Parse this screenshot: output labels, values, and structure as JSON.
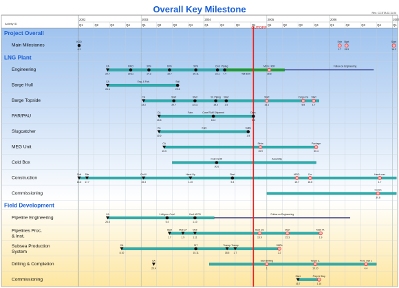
{
  "title": "Overall Key Milestone",
  "revision": "Rev.: CCSTA 02.11.04",
  "activity_header": "Activity ID",
  "cutoff_label": "CUTOFF",
  "chart_data": {
    "type": "gantt",
    "time_axis": {
      "start": "2002-01",
      "end": "2007-02",
      "years": [
        "2002",
        "2003",
        "2004",
        "2005",
        "2006",
        "2007"
      ],
      "quarters": [
        "Q1",
        "Q2",
        "Q3",
        "Q4"
      ]
    },
    "cutoff": "2004-10-15",
    "legend": "none",
    "grid": true,
    "rows": [
      {
        "label": "Project Overall",
        "kind": "section",
        "band": "blue"
      },
      {
        "label": "Main Milestones",
        "kind": "task",
        "band": "blue",
        "bars": [],
        "milestones": [
          {
            "t": "2002-01-05",
            "shape": "dot",
            "top": "KOD",
            "bot": "6.3"
          },
          {
            "t": "2006-03-01",
            "shape": "ring",
            "top": "Entr",
            "bot": "1.7"
          },
          {
            "t": "2006-04-10",
            "shape": "ring",
            "top": "Start",
            "bot": "15.9"
          },
          {
            "t": "2007-01-10",
            "shape": "ring",
            "top": "Start",
            "bot": "16.2"
          }
        ]
      },
      {
        "label": "LNG Plant",
        "kind": "section",
        "band": "blue"
      },
      {
        "label": "Engineering",
        "kind": "task",
        "band": "blue",
        "bars": [
          {
            "s": "2002-06-20",
            "e": "2004-10-10",
            "style": "teal"
          },
          {
            "s": "2004-05-05",
            "e": "2005-04-15",
            "style": "green"
          },
          {
            "s": "2005-04-15",
            "e": "2006-09-15",
            "style": "navy"
          }
        ],
        "milestones": [
          {
            "t": "2002-06-20",
            "shape": "tri",
            "top": "CA",
            "bot": "20.7"
          },
          {
            "t": "2002-11-01",
            "shape": "dot",
            "top": "FIRO",
            "bot": "29.11"
          },
          {
            "t": "2003-02-15",
            "shape": "dot",
            "top": "30%",
            "bot": "14.2"
          },
          {
            "t": "2003-06-15",
            "shape": "dot",
            "top": "60%",
            "bot": "15.7"
          },
          {
            "t": "2003-11-15",
            "shape": "dot",
            "top": "90%",
            "bot": "30.11"
          },
          {
            "t": "2004-03-20",
            "shape": "dot",
            "top": "Civil",
            "bot": "22.1"
          },
          {
            "t": "2004-05-01",
            "shape": "dot",
            "top": "Piping",
            "bot": "7.4"
          },
          {
            "t": "2004-09-01",
            "shape": "none",
            "top": "",
            "bot": "Tall Built"
          },
          {
            "t": "2005-01-15",
            "shape": "ring",
            "top": "MEG / IOR",
            "bot": "15.6"
          },
          {
            "t": "2006-04-01",
            "shape": "none",
            "top": "Follow on Engineering",
            "bot": ""
          }
        ]
      },
      {
        "label": "Barge Hull",
        "kind": "task",
        "band": "blue",
        "bars": [
          {
            "s": "2002-06-20",
            "e": "2003-08-01",
            "style": "teal"
          }
        ],
        "milestones": [
          {
            "t": "2002-06-20",
            "shape": "tri",
            "top": "CA",
            "bot": "26.6"
          },
          {
            "t": "2003-01-15",
            "shape": "none",
            "top": "Eng. & Fab.",
            "bot": ""
          },
          {
            "t": "2003-08-01",
            "shape": "dot",
            "top": "Sail",
            "bot": "29.8"
          }
        ]
      },
      {
        "label": "Barge Topside",
        "kind": "task",
        "band": "blue",
        "bars": [
          {
            "s": "2003-01-15",
            "e": "2005-11-01",
            "style": "teal"
          }
        ],
        "milestones": [
          {
            "t": "2003-01-15",
            "shape": "tri",
            "top": "CA",
            "bot": "13.2"
          },
          {
            "t": "2003-07-10",
            "shape": "dot",
            "top": "Start",
            "bot": "20.7"
          },
          {
            "t": "2003-11-10",
            "shape": "dot",
            "top": "Start",
            "bot": "12.11"
          },
          {
            "t": "2004-03-10",
            "shape": "dot",
            "top": "St. Piping",
            "bot": "18.3"
          },
          {
            "t": "2004-05-10",
            "shape": "dot",
            "top": "Start",
            "bot": "1.5"
          },
          {
            "t": "2005-01-01",
            "shape": "ring",
            "top": "Start",
            "bot": "15.1"
          },
          {
            "t": "2005-08-01",
            "shape": "ring",
            "top": "Cargo Ins",
            "bot": "8.8"
          },
          {
            "t": "2005-10-01",
            "shape": "ring",
            "top": "Start",
            "bot": "1.7"
          }
        ]
      },
      {
        "label": "PAR/PAU",
        "kind": "task",
        "band": "blue",
        "bars": [
          {
            "s": "2003-04-15",
            "e": "2004-10-15",
            "style": "teal"
          }
        ],
        "milestones": [
          {
            "t": "2003-04-15",
            "shape": "tri",
            "top": "CA",
            "bot": "15.5"
          },
          {
            "t": "2003-10-15",
            "shape": "none",
            "top": "Fabr.",
            "bot": ""
          },
          {
            "t": "2004-02-25",
            "shape": "dot",
            "top": "Cove RAM Shipment",
            "bot": "18.2"
          },
          {
            "t": "2004-10-15",
            "shape": "dot",
            "top": "Dem.",
            "bot": "5.8"
          }
        ]
      },
      {
        "label": "Slugcatcher",
        "kind": "task",
        "band": "blue",
        "bars": [
          {
            "s": "2003-04-15",
            "e": "2004-09-15",
            "style": "teal"
          }
        ],
        "milestones": [
          {
            "t": "2003-04-15",
            "shape": "tri",
            "top": "CA",
            "bot": "15.5"
          },
          {
            "t": "2004-01-05",
            "shape": "none",
            "top": "Fabr.",
            "bot": ""
          },
          {
            "t": "2004-09-15",
            "shape": "dot",
            "top": "Sailto",
            "bot": "1.8"
          }
        ]
      },
      {
        "label": "MEG Unit",
        "kind": "task",
        "band": "blue",
        "bars": [
          {
            "s": "2003-05-15",
            "e": "2005-10-15",
            "style": "teal"
          }
        ],
        "milestones": [
          {
            "t": "2003-05-15",
            "shape": "tri",
            "top": "CA",
            "bot": "15.5"
          },
          {
            "t": "2004-11-25",
            "shape": "ring",
            "top": "Sinks",
            "bot": "15.9"
          },
          {
            "t": "2005-10-15",
            "shape": "ring",
            "top": "Package",
            "bot": "30.4"
          }
        ]
      },
      {
        "label": "Cold Box",
        "kind": "task",
        "band": "blue",
        "bars": [
          {
            "s": "2003-07-01",
            "e": "2005-10-15",
            "style": "teal"
          }
        ],
        "milestones": [
          {
            "t": "2004-03-15",
            "shape": "dot",
            "top": "Cold Certif.",
            "bot": "30.6"
          },
          {
            "t": "2005-03-01",
            "shape": "none",
            "top": "Assembly",
            "bot": ""
          }
        ]
      },
      {
        "label": "Construction",
        "kind": "task",
        "band": "blue",
        "bars": [
          {
            "s": "2002-01-05",
            "e": "2004-11-15",
            "style": "teal"
          },
          {
            "s": "2004-11-15",
            "e": "2007-01-25",
            "style": "teal"
          }
        ],
        "milestones": [
          {
            "t": "2002-01-05",
            "shape": "tri",
            "top": "Civil",
            "bot": "14.6"
          },
          {
            "t": "2002-02-20",
            "shape": "tri",
            "top": "Site",
            "bot": "17.7"
          },
          {
            "t": "2003-01-15",
            "shape": "tri",
            "top": "Civil II",
            "bot": "15.3"
          },
          {
            "t": "2003-10-15",
            "shape": "tri",
            "top": "Hand-Up",
            "bot": "1.10"
          },
          {
            "t": "2004-06-15",
            "shape": "dot",
            "top": "Start",
            "bot": "5.4"
          },
          {
            "t": "2005-06-25",
            "shape": "ring",
            "top": "MECL",
            "bot": "15.7"
          },
          {
            "t": "2005-09-10",
            "shape": "ring",
            "top": "Cor.",
            "bot": "18.8"
          },
          {
            "t": "2006-10-20",
            "shape": "ring",
            "top": "Hand-over",
            "bot": "1.7"
          }
        ]
      },
      {
        "label": "Commissioning",
        "kind": "task",
        "band": "blue",
        "bars": [
          {
            "s": "2005-01-01",
            "e": "2007-01-25",
            "style": "teal"
          }
        ],
        "milestones": [
          {
            "t": "2006-10-10",
            "shape": "ring",
            "top": "Comm",
            "bot": "30.8"
          }
        ]
      },
      {
        "label": "Field Development",
        "kind": "section",
        "band": "yellow"
      },
      {
        "label": "Pipeline Engineering",
        "kind": "task",
        "band": "yellow",
        "bars": [
          {
            "s": "2002-06-20",
            "e": "2004-03-01",
            "style": "teal"
          },
          {
            "s": "2004-03-01",
            "e": "2006-05-01",
            "style": "navy"
          }
        ],
        "milestones": [
          {
            "t": "2002-06-20",
            "shape": "tri",
            "top": "CA",
            "bot": "26.6"
          },
          {
            "t": "2003-06-01",
            "shape": "dot",
            "top": "1.Alignm. Conf.",
            "bot": "5.4"
          },
          {
            "t": "2003-11-10",
            "shape": "dot",
            "top": "Conf AFCD",
            "bot": "1.10"
          },
          {
            "t": "2005-04-01",
            "shape": "none",
            "top": "Follow on Engineering",
            "bot": ""
          }
        ]
      },
      {
        "label": "Pipelines Proc. & Inst.",
        "kind": "task",
        "band": "yellow",
        "bars": [
          {
            "s": "2003-06-15",
            "e": "2005-11-10",
            "style": "teal"
          }
        ],
        "milestones": [
          {
            "t": "2003-06-15",
            "shape": "tri",
            "top": "Start",
            "bot": "1.7"
          },
          {
            "t": "2003-09-01",
            "shape": "tri",
            "top": "Mob LP",
            "bot": "1.9"
          },
          {
            "t": "2003-11-10",
            "shape": "tri",
            "top": "Mob",
            "bot": "1.11"
          },
          {
            "t": "2004-11-20",
            "shape": "ring",
            "top": "Start pre",
            "bot": "15.9"
          },
          {
            "t": "2005-05-01",
            "shape": "ring",
            "top": "Start",
            "bot": "15.3"
          },
          {
            "t": "2005-11-10",
            "shape": "ring",
            "top": "Main Pl.",
            "bot": "1.9"
          }
        ]
      },
      {
        "label": "Subsea Production System",
        "kind": "task",
        "band": "yellow",
        "bars": [
          {
            "s": "2002-09-10",
            "e": "2005-03-15",
            "style": "teal"
          }
        ],
        "milestones": [
          {
            "t": "2002-09-10",
            "shape": "tri",
            "top": "CA",
            "bot": "8.10"
          },
          {
            "t": "2003-11-15",
            "shape": "dot",
            "top": "SIT",
            "bot": "15.11"
          },
          {
            "t": "2004-05-15",
            "shape": "tri",
            "top": "Transp.",
            "bot": "18.5"
          },
          {
            "t": "2004-07-01",
            "shape": "tri",
            "top": "Transp.",
            "bot": "1.7"
          },
          {
            "t": "2005-03-15",
            "shape": "ring",
            "top": "SMPs",
            "bot": "2.2"
          }
        ]
      },
      {
        "label": "Drilling & Completion",
        "kind": "task",
        "band": "yellow",
        "bars": [
          {
            "s": "2004-02-01",
            "e": "2006-10-01",
            "style": "teal"
          }
        ],
        "milestones": [
          {
            "t": "2003-03-15",
            "shape": "tri",
            "top": "CA",
            "bot": "20.4"
          },
          {
            "t": "2005-01-01",
            "shape": "ring",
            "top": "Start Drilling",
            "bot": "1"
          },
          {
            "t": "2005-10-10",
            "shape": "ring",
            "top": "Target C.",
            "bot": "10.10"
          },
          {
            "t": "2006-08-01",
            "shape": "ring",
            "top": "Prod. well 1",
            "bot": "4.4"
          }
        ]
      },
      {
        "label": "Commissioning",
        "kind": "task",
        "band": "yellow",
        "bars": [
          {
            "s": "2005-07-01",
            "e": "2005-11-01",
            "style": "teal"
          }
        ],
        "milestones": [
          {
            "t": "2005-07-01",
            "shape": "tri",
            "top": "Start",
            "bot": "16.7"
          },
          {
            "t": "2005-11-01",
            "shape": "ring",
            "top": "Prep & Stop",
            "bot": "1.10"
          }
        ]
      }
    ]
  },
  "colors": {
    "title": "#1a5fd6",
    "section": "#1a5fd6",
    "cutoff": "#e8211c",
    "bar_teal": "#2aaeae",
    "bar_green": "#1ca01c",
    "bar_navy": "#26297e",
    "ring": "#e0383a",
    "band_blue_top": "#9fc3ef",
    "band_blue_bottom": "#ffffff",
    "band_yellow_top": "#ffffff",
    "band_yellow_bottom": "#fde6a0"
  }
}
